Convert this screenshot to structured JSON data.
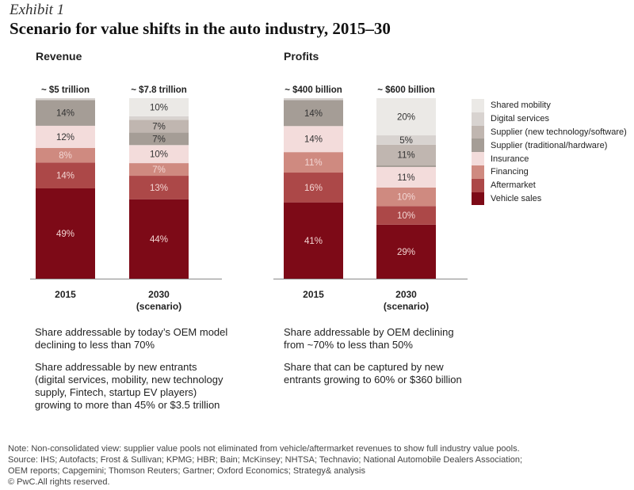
{
  "exhibit": "Exhibit 1",
  "title": "Scenario for value shifts in the auto industry, 2015–30",
  "chart_data": [
    {
      "type": "bar",
      "stacked": true,
      "title": "Revenue",
      "categories": [
        "2015",
        "2030\n(scenario)"
      ],
      "category_labels": [
        [
          "2015"
        ],
        [
          "2030",
          "(scenario)"
        ]
      ],
      "totals": [
        "~ $5 trillion",
        "~ $7.8 trillion"
      ],
      "series": [
        {
          "name": "Vehicle sales",
          "values": [
            49,
            44
          ],
          "labels": [
            "49%",
            "44%"
          ]
        },
        {
          "name": "Aftermarket",
          "values": [
            14,
            13
          ],
          "labels": [
            "14%",
            "13%"
          ]
        },
        {
          "name": "Financing",
          "values": [
            8,
            7
          ],
          "labels": [
            "8%",
            "7%"
          ]
        },
        {
          "name": "Insurance",
          "values": [
            12,
            10
          ],
          "labels": [
            "12%",
            "10%"
          ]
        },
        {
          "name": "Supplier (traditional/hardware)",
          "values": [
            14,
            7
          ],
          "labels": [
            "14%",
            "7%"
          ]
        },
        {
          "name": "Supplier (new technology/software)",
          "values": [
            0,
            7
          ],
          "labels": [
            "",
            "7%"
          ]
        },
        {
          "name": "Digital services",
          "values": [
            1,
            2
          ],
          "labels": [
            "",
            ""
          ]
        },
        {
          "name": "Shared mobility",
          "values": [
            0,
            10
          ],
          "labels": [
            "",
            "10%"
          ]
        }
      ]
    },
    {
      "type": "bar",
      "stacked": true,
      "title": "Profits",
      "categories": [
        "2015",
        "2030\n(scenario)"
      ],
      "category_labels": [
        [
          "2015"
        ],
        [
          "2030",
          "(scenario)"
        ]
      ],
      "totals": [
        "~ $400 billion",
        "~ $600 billion"
      ],
      "series": [
        {
          "name": "Vehicle sales",
          "values": [
            41,
            29
          ],
          "labels": [
            "41%",
            "29%"
          ]
        },
        {
          "name": "Aftermarket",
          "values": [
            16,
            10
          ],
          "labels": [
            "16%",
            "10%"
          ]
        },
        {
          "name": "Financing",
          "values": [
            11,
            10
          ],
          "labels": [
            "11%",
            "10%"
          ]
        },
        {
          "name": "Insurance",
          "values": [
            14,
            11
          ],
          "labels": [
            "14%",
            "11%"
          ]
        },
        {
          "name": "Supplier (traditional/hardware)",
          "values": [
            14,
            1
          ],
          "labels": [
            "14%",
            ""
          ]
        },
        {
          "name": "Supplier (new technology/software)",
          "values": [
            0,
            11
          ],
          "labels": [
            "",
            "11%"
          ]
        },
        {
          "name": "Digital services",
          "values": [
            1,
            5
          ],
          "labels": [
            "",
            "5%"
          ]
        },
        {
          "name": "Shared mobility",
          "values": [
            0,
            20
          ],
          "labels": [
            "",
            "20%"
          ]
        }
      ]
    }
  ],
  "colors": {
    "Vehicle sales": "#7d0a17",
    "Aftermarket": "#ac4848",
    "Financing": "#cf8a80",
    "Insurance": "#f3dcdb",
    "Supplier (traditional/hardware)": "#a59d96",
    "Supplier (new technology/software)": "#c0b6b0",
    "Digital services": "#d8d3d0",
    "Shared mobility": "#ebe9e6"
  },
  "legend": [
    "Shared mobility",
    "Digital services",
    "Supplier (new technology/software)",
    "Supplier (traditional/hardware)",
    "Insurance",
    "Financing",
    "Aftermarket",
    "Vehicle sales"
  ],
  "notes": {
    "revenue_1": "Share addressable by today’s OEM model declining to less than 70%",
    "revenue_2": "Share addressable by new entrants (digital services, mobility, new technol­ogy supply, Fintech, startup EV players) growing to more than 45% or $3.5 trillion",
    "profits_1": "Share addressable by OEM declining from ~70% to less than 50%",
    "profits_2": "Share that can be captured by new entrants growing to 60% or $360 billion"
  },
  "footer": [
    "Note: Non-consolidated view: supplier value pools not eliminated from vehicle/aftermarket revenues to show full industry value pools.",
    "Source: IHS; Autofacts; Frost & Sullivan; KPMG; HBR; Bain; McKinsey; NHTSA; Technavio; National Automobile Dealers Association;",
    "OEM reports; Capgemini; Thomson Reuters; Gartner; Oxford Economics; Strategy& analysis",
    "© PwC.All rights reserved."
  ]
}
